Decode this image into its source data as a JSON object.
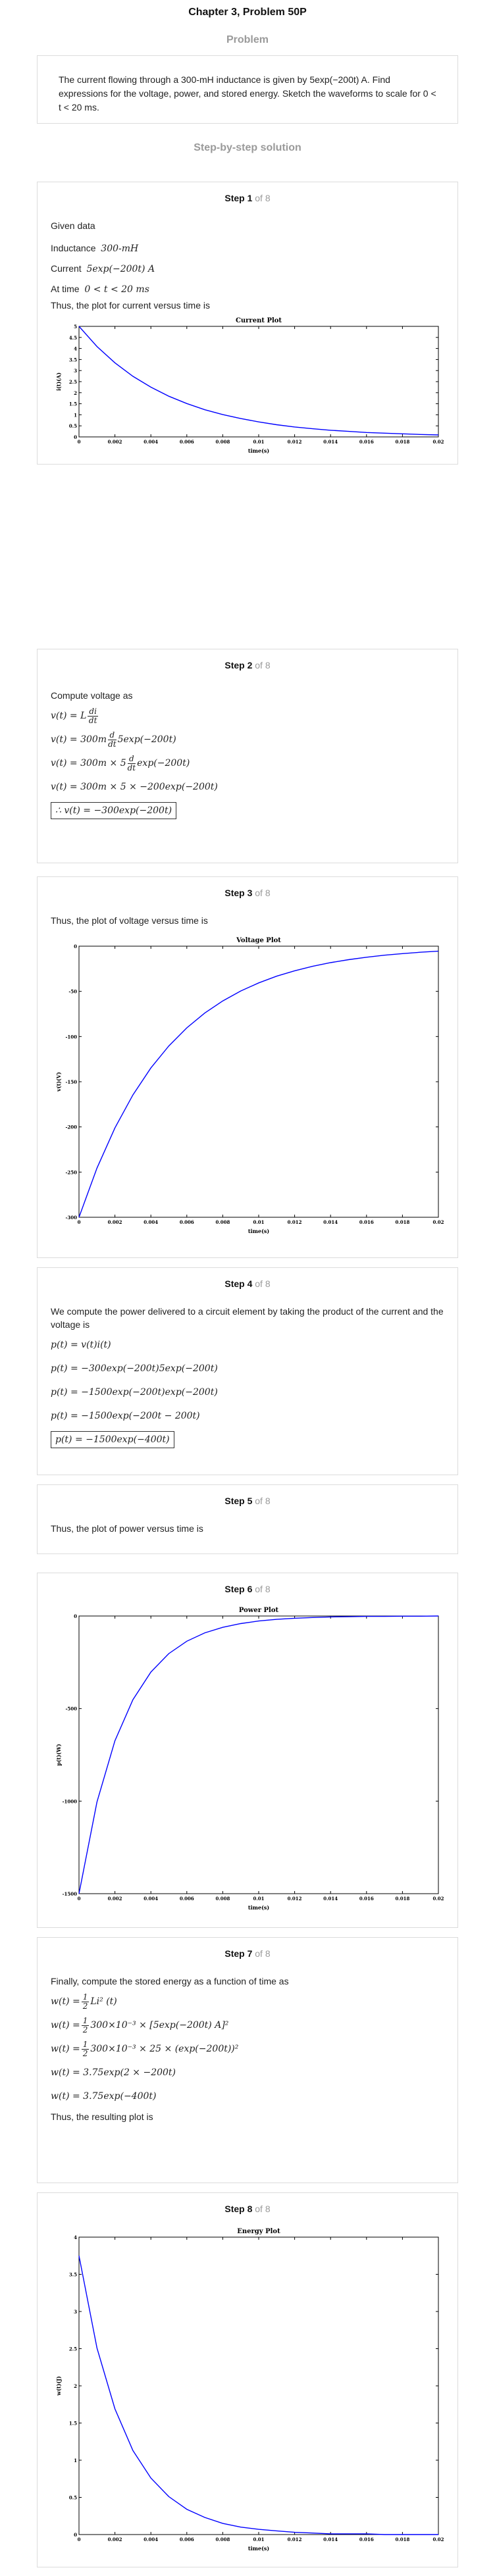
{
  "header": {
    "title": "Chapter 3, Problem 50P",
    "problem_heading": "Problem",
    "problem_text": "The current flowing through a 300-mH inductance is given by 5exp(−200t) A. Find expressions for the voltage, power, and stored energy. Sketch the waveforms to scale for 0 < t < 20 ms.",
    "solution_heading": "Step-by-step solution"
  },
  "steps": [
    {
      "label": "Step 1",
      "of": "of 8",
      "lines": {
        "given": "Given data",
        "inductance_label": "Inductance",
        "inductance_value": "300-mH",
        "current_label": "Current",
        "current_value": "5exp(−200t) A",
        "time_label": "At time",
        "time_value": "0 < t < 20 ms",
        "plot_intro": "Thus, the plot for current versus time is"
      }
    },
    {
      "label": "Step 2",
      "of": "of 8",
      "lines": {
        "intro": "Compute voltage as",
        "eq1": "v(t) = L",
        "eq1_num": "di",
        "eq1_den": "dt",
        "eq2_a": "v(t) = 300m",
        "eq2_num": "d",
        "eq2_den": "dt",
        "eq2_b": "5exp(−200t)",
        "eq3_a": "v(t) = 300m × 5",
        "eq3_num": "d",
        "eq3_den": "dt",
        "eq3_b": "exp(−200t)",
        "eq4": "v(t) = 300m × 5 × −200exp(−200t)",
        "result": "∴ v(t) = −300exp(−200t)"
      }
    },
    {
      "label": "Step 3",
      "of": "of 8",
      "lines": {
        "intro": "Thus, the plot of voltage versus time is"
      }
    },
    {
      "label": "Step 4",
      "of": "of 8",
      "lines": {
        "intro": "We compute the power delivered to a circuit element by taking the product of the current and the voltage is",
        "eq1": "p(t) = v(t)i(t)",
        "eq2": "p(t) = −300exp(−200t)5exp(−200t)",
        "eq3": "p(t) = −1500exp(−200t)exp(−200t)",
        "eq4": "p(t) = −1500exp(−200t − 200t)",
        "result": "p(t) = −1500exp(−400t)"
      }
    },
    {
      "label": "Step 5",
      "of": "of 8",
      "lines": {
        "intro": "Thus, the plot of power versus time is"
      }
    },
    {
      "label": "Step 6",
      "of": "of 8",
      "lines": {}
    },
    {
      "label": "Step 7",
      "of": "of 8",
      "lines": {
        "intro": "Finally, compute the stored energy as a function of time as",
        "eq1_a": "w(t) =",
        "eq1_num": "1",
        "eq1_den": "2",
        "eq1_b": "Li² (t)",
        "eq2_a": "w(t) =",
        "eq2_num": "1",
        "eq2_den": "2",
        "eq2_b": "300×10⁻³ × [5exp(−200t) A]²",
        "eq3_a": "w(t) =",
        "eq3_num": "1",
        "eq3_den": "2",
        "eq3_b": "300×10⁻³ × 25 × (exp(−200t))²",
        "eq4": "w(t) = 3.75exp(2 × −200t)",
        "eq5": "w(t) = 3.75exp(−400t)",
        "outro": "Thus, the resulting plot is"
      }
    },
    {
      "label": "Step 8",
      "of": "of 8",
      "lines": {}
    }
  ],
  "chart_data": [
    {
      "type": "line",
      "title": "Current Plot",
      "xlabel": "time(s)",
      "ylabel": "i(t)(A)",
      "xlim": [
        0,
        0.02
      ],
      "ylim": [
        0,
        5
      ],
      "xticks": [
        "0",
        "0.002",
        "0.004",
        "0.006",
        "0.008",
        "0.01",
        "0.012",
        "0.014",
        "0.016",
        "0.018",
        "0.02"
      ],
      "yticks": [
        "0",
        "0.5",
        "1",
        "1.5",
        "2",
        "2.5",
        "3",
        "3.5",
        "4",
        "4.5",
        "5"
      ],
      "color": "#0000ff",
      "series": [
        {
          "x": [
            0,
            0.001,
            0.002,
            0.003,
            0.004,
            0.005,
            0.006,
            0.007,
            0.008,
            0.009,
            0.01,
            0.011,
            0.012,
            0.013,
            0.014,
            0.015,
            0.016,
            0.017,
            0.018,
            0.019,
            0.02
          ],
          "y": [
            5,
            4.09,
            3.35,
            2.74,
            2.25,
            1.84,
            1.51,
            1.23,
            1.01,
            0.83,
            0.68,
            0.55,
            0.45,
            0.37,
            0.3,
            0.25,
            0.2,
            0.17,
            0.14,
            0.11,
            0.09
          ]
        }
      ]
    },
    {
      "type": "line",
      "title": "Voltage Plot",
      "xlabel": "time(s)",
      "ylabel": "v(t)(V)",
      "xlim": [
        0,
        0.02
      ],
      "ylim": [
        -300,
        0
      ],
      "xticks": [
        "0",
        "0.002",
        "0.004",
        "0.006",
        "0.008",
        "0.01",
        "0.012",
        "0.014",
        "0.016",
        "0.018",
        "0.02"
      ],
      "yticks": [
        "-300",
        "-250",
        "-200",
        "-150",
        "-100",
        "-50",
        "0"
      ],
      "color": "#0000ff",
      "series": [
        {
          "x": [
            0,
            0.001,
            0.002,
            0.003,
            0.004,
            0.005,
            0.006,
            0.007,
            0.008,
            0.009,
            0.01,
            0.011,
            0.012,
            0.013,
            0.014,
            0.015,
            0.016,
            0.017,
            0.018,
            0.019,
            0.02
          ],
          "y": [
            -300,
            -245.6,
            -201.1,
            -164.6,
            -134.8,
            -110.4,
            -90.4,
            -74.0,
            -60.6,
            -49.6,
            -40.6,
            -33.2,
            -27.2,
            -22.3,
            -18.2,
            -14.9,
            -12.2,
            -10.0,
            -8.2,
            -6.7,
            -5.5
          ]
        }
      ]
    },
    {
      "type": "line",
      "title": "Power Plot",
      "xlabel": "time(s)",
      "ylabel": "p(t)(W)",
      "xlim": [
        0,
        0.02
      ],
      "ylim": [
        -1500,
        0
      ],
      "xticks": [
        "0",
        "0.002",
        "0.004",
        "0.006",
        "0.008",
        "0.01",
        "0.012",
        "0.014",
        "0.016",
        "0.018",
        "0.02"
      ],
      "yticks": [
        "-1500",
        "-1000",
        "-500",
        "0"
      ],
      "color": "#0000ff",
      "series": [
        {
          "x": [
            0,
            0.001,
            0.002,
            0.003,
            0.004,
            0.005,
            0.006,
            0.007,
            0.008,
            0.009,
            0.01,
            0.011,
            0.012,
            0.013,
            0.014,
            0.015,
            0.016,
            0.017,
            0.018,
            0.019,
            0.02
          ],
          "y": [
            -1500,
            -1005,
            -674,
            -452,
            -303,
            -203,
            -136,
            -91,
            -61,
            -41,
            -27,
            -18,
            -12,
            -8,
            -5,
            -4,
            -2,
            -2,
            -1,
            -1,
            0
          ]
        }
      ]
    },
    {
      "type": "line",
      "title": "Energy Plot",
      "xlabel": "time(s)",
      "ylabel": "w(t)(J)",
      "xlim": [
        0,
        0.02
      ],
      "ylim": [
        0,
        4
      ],
      "xticks": [
        "0",
        "0.002",
        "0.004",
        "0.006",
        "0.008",
        "0.01",
        "0.012",
        "0.014",
        "0.016",
        "0.018",
        "0.02"
      ],
      "yticks": [
        "0",
        "0.5",
        "1",
        "1.5",
        "2",
        "2.5",
        "3",
        "3.5",
        "4"
      ],
      "color": "#0000ff",
      "series": [
        {
          "x": [
            0,
            0.001,
            0.002,
            0.003,
            0.004,
            0.005,
            0.006,
            0.007,
            0.008,
            0.009,
            0.01,
            0.011,
            0.012,
            0.013,
            0.014,
            0.015,
            0.016,
            0.017,
            0.018,
            0.019,
            0.02
          ],
          "y": [
            3.75,
            2.51,
            1.69,
            1.13,
            0.76,
            0.51,
            0.34,
            0.23,
            0.15,
            0.1,
            0.07,
            0.05,
            0.03,
            0.02,
            0.01,
            0.01,
            0.01,
            0,
            0,
            0,
            0
          ]
        }
      ]
    }
  ]
}
